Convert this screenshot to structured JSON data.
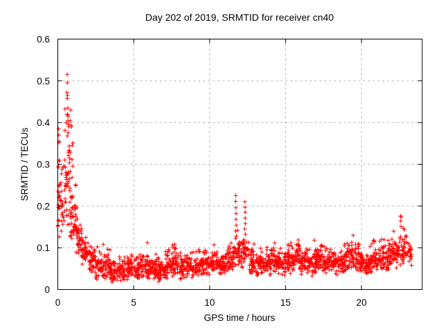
{
  "window": {
    "background": "#ffffff"
  },
  "chart_data": {
    "type": "scatter",
    "title": "Day 202 of 2019, SRMTID for receiver cn40",
    "xlabel": "GPS time / hours",
    "ylabel": "SRMTID / TECUs",
    "xlim": [
      0,
      24
    ],
    "ylim": [
      0,
      0.6
    ],
    "xticks": [
      0,
      5,
      10,
      15,
      20
    ],
    "yticks": [
      0,
      0.1,
      0.2,
      0.3,
      0.4,
      0.5,
      0.6
    ],
    "grid": "dashed-major",
    "grid_color": "#b0b0b0",
    "legend": "none",
    "marker": "plus",
    "marker_color": "#ff0000",
    "marker_size_px": 7,
    "series_name": "SRMTID",
    "data_span_hours": [
      0,
      23.3
    ],
    "bins_schema": [
      "x_start_hours",
      "x_end_hours",
      "point_count",
      "value_min",
      "value_max",
      "value_center"
    ],
    "density_bins": [
      [
        0.0,
        0.15,
        18,
        0.05,
        0.45,
        0.22
      ],
      [
        0.15,
        0.4,
        20,
        0.1,
        0.36,
        0.2
      ],
      [
        0.4,
        0.6,
        22,
        0.12,
        0.48,
        0.24
      ],
      [
        0.6,
        0.8,
        26,
        0.12,
        0.52,
        0.27
      ],
      [
        0.8,
        1.0,
        28,
        0.1,
        0.44,
        0.18
      ],
      [
        1.0,
        1.3,
        34,
        0.08,
        0.26,
        0.15
      ],
      [
        1.3,
        1.6,
        30,
        0.06,
        0.17,
        0.11
      ],
      [
        1.6,
        2.0,
        36,
        0.045,
        0.13,
        0.085
      ],
      [
        2.0,
        2.5,
        42,
        0.03,
        0.115,
        0.065
      ],
      [
        2.5,
        3.0,
        44,
        0.02,
        0.105,
        0.055
      ],
      [
        3.0,
        3.5,
        44,
        0.015,
        0.11,
        0.05
      ],
      [
        3.5,
        4.0,
        44,
        0.01,
        0.08,
        0.042
      ],
      [
        4.0,
        4.5,
        44,
        0.015,
        0.085,
        0.045
      ],
      [
        4.5,
        5.0,
        44,
        0.02,
        0.09,
        0.048
      ],
      [
        5.0,
        5.5,
        44,
        0.02,
        0.1,
        0.052
      ],
      [
        5.5,
        6.0,
        44,
        0.02,
        0.115,
        0.055
      ],
      [
        6.0,
        6.5,
        44,
        0.02,
        0.09,
        0.048
      ],
      [
        6.5,
        7.0,
        44,
        0.015,
        0.085,
        0.045
      ],
      [
        7.0,
        7.5,
        44,
        0.02,
        0.1,
        0.052
      ],
      [
        7.5,
        8.0,
        44,
        0.025,
        0.11,
        0.058
      ],
      [
        8.0,
        8.5,
        44,
        0.02,
        0.09,
        0.05
      ],
      [
        8.5,
        9.0,
        44,
        0.02,
        0.095,
        0.05
      ],
      [
        9.0,
        9.5,
        44,
        0.025,
        0.1,
        0.055
      ],
      [
        9.5,
        10.0,
        44,
        0.025,
        0.105,
        0.058
      ],
      [
        10.0,
        10.5,
        44,
        0.03,
        0.11,
        0.06
      ],
      [
        10.5,
        11.0,
        44,
        0.03,
        0.1,
        0.055
      ],
      [
        11.0,
        11.5,
        44,
        0.035,
        0.13,
        0.068
      ],
      [
        11.5,
        11.9,
        32,
        0.05,
        0.16,
        0.085
      ],
      [
        11.9,
        12.2,
        26,
        0.045,
        0.14,
        0.075
      ],
      [
        12.2,
        12.6,
        30,
        0.05,
        0.155,
        0.09
      ],
      [
        12.6,
        13.0,
        42,
        0.03,
        0.12,
        0.065
      ],
      [
        13.0,
        13.5,
        44,
        0.03,
        0.1,
        0.058
      ],
      [
        13.5,
        14.0,
        44,
        0.03,
        0.11,
        0.06
      ],
      [
        14.0,
        14.5,
        46,
        0.03,
        0.12,
        0.065
      ],
      [
        14.5,
        15.0,
        46,
        0.03,
        0.11,
        0.06
      ],
      [
        15.0,
        15.5,
        46,
        0.035,
        0.12,
        0.068
      ],
      [
        15.5,
        16.0,
        46,
        0.04,
        0.13,
        0.072
      ],
      [
        16.0,
        16.5,
        46,
        0.03,
        0.11,
        0.062
      ],
      [
        16.5,
        17.0,
        46,
        0.03,
        0.12,
        0.065
      ],
      [
        17.0,
        17.5,
        46,
        0.04,
        0.13,
        0.072
      ],
      [
        17.5,
        18.0,
        46,
        0.035,
        0.12,
        0.068
      ],
      [
        18.0,
        18.5,
        46,
        0.03,
        0.11,
        0.06
      ],
      [
        18.5,
        19.0,
        46,
        0.035,
        0.12,
        0.065
      ],
      [
        19.0,
        19.5,
        46,
        0.04,
        0.13,
        0.072
      ],
      [
        19.5,
        20.0,
        46,
        0.035,
        0.12,
        0.068
      ],
      [
        20.0,
        20.5,
        46,
        0.03,
        0.11,
        0.06
      ],
      [
        20.5,
        21.0,
        46,
        0.035,
        0.12,
        0.065
      ],
      [
        21.0,
        21.5,
        46,
        0.04,
        0.125,
        0.07
      ],
      [
        21.5,
        22.0,
        46,
        0.04,
        0.13,
        0.075
      ],
      [
        22.0,
        22.5,
        46,
        0.045,
        0.155,
        0.082
      ],
      [
        22.5,
        22.9,
        36,
        0.05,
        0.18,
        0.09
      ],
      [
        22.9,
        23.3,
        30,
        0.05,
        0.14,
        0.085
      ]
    ],
    "feature_points": [
      {
        "x": 0.05,
        "y": 0.385
      },
      {
        "x": 0.07,
        "y": 0.37
      },
      {
        "x": 0.1,
        "y": 0.355
      },
      {
        "x": 0.1,
        "y": 0.31
      },
      {
        "x": 0.08,
        "y": 0.25
      },
      {
        "x": 0.12,
        "y": 0.225
      },
      {
        "x": 0.62,
        "y": 0.515
      },
      {
        "x": 0.63,
        "y": 0.495
      },
      {
        "x": 0.6,
        "y": 0.472
      },
      {
        "x": 0.64,
        "y": 0.465
      },
      {
        "x": 0.62,
        "y": 0.458
      },
      {
        "x": 0.66,
        "y": 0.435
      },
      {
        "x": 0.64,
        "y": 0.42
      },
      {
        "x": 0.68,
        "y": 0.415
      },
      {
        "x": 0.55,
        "y": 0.4
      },
      {
        "x": 0.7,
        "y": 0.396
      },
      {
        "x": 0.72,
        "y": 0.39
      },
      {
        "x": 0.85,
        "y": 0.43
      },
      {
        "x": 0.9,
        "y": 0.39
      },
      {
        "x": 0.95,
        "y": 0.345
      },
      {
        "x": 11.72,
        "y": 0.225
      },
      {
        "x": 11.72,
        "y": 0.211
      },
      {
        "x": 11.73,
        "y": 0.196
      },
      {
        "x": 11.74,
        "y": 0.182
      },
      {
        "x": 11.74,
        "y": 0.168
      },
      {
        "x": 11.75,
        "y": 0.154
      },
      {
        "x": 11.71,
        "y": 0.14
      },
      {
        "x": 11.76,
        "y": 0.128
      },
      {
        "x": 12.32,
        "y": 0.21
      },
      {
        "x": 12.33,
        "y": 0.197
      },
      {
        "x": 12.34,
        "y": 0.185
      },
      {
        "x": 12.34,
        "y": 0.171
      },
      {
        "x": 12.35,
        "y": 0.158
      },
      {
        "x": 12.31,
        "y": 0.145
      },
      {
        "x": 12.36,
        "y": 0.132
      },
      {
        "x": 22.58,
        "y": 0.176
      },
      {
        "x": 22.58,
        "y": 0.164
      },
      {
        "x": 22.6,
        "y": 0.151
      },
      {
        "x": 3.0,
        "y": 0.108
      },
      {
        "x": 5.9,
        "y": 0.112
      },
      {
        "x": 7.7,
        "y": 0.108
      }
    ]
  }
}
